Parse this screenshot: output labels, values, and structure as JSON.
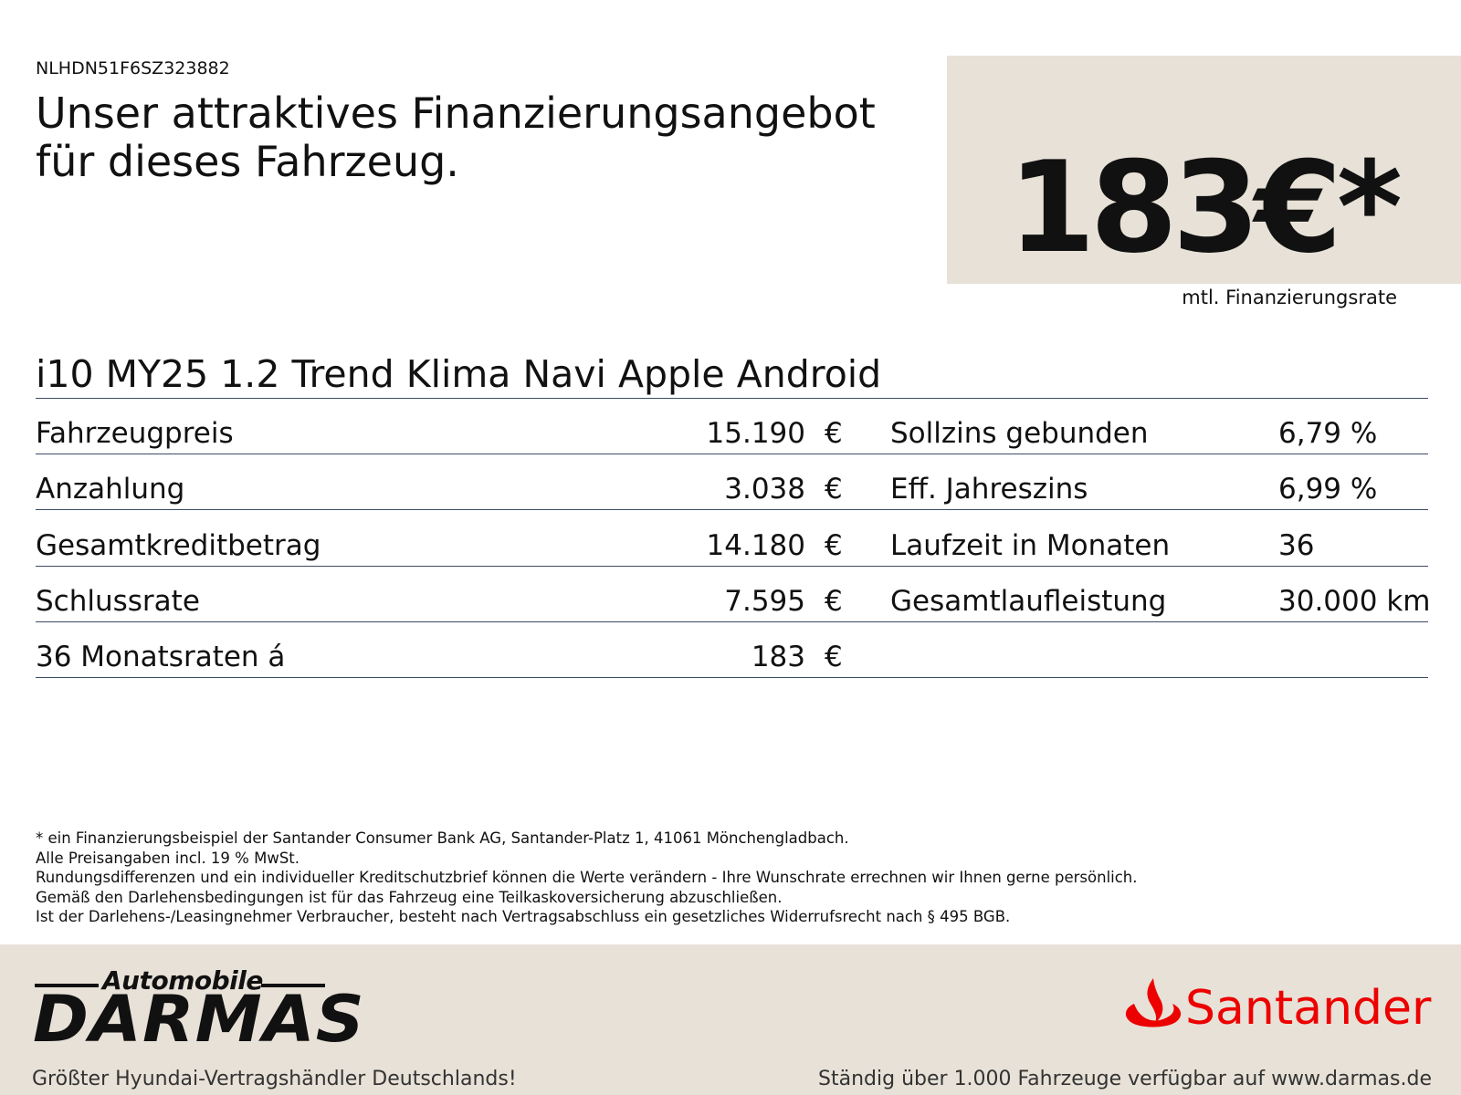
{
  "vin": "NLHDN51F6SZ323882",
  "headline": [
    "Unser attraktives Finanzierungsangebot",
    "für dieses Fahrzeug."
  ],
  "price": "183€*",
  "price_label": "mtl. Finanzierungsrate",
  "model": "i10 MY25 1.2 Trend Klima Navi Apple Android",
  "left_table": [
    {
      "label": "Fahrzeugpreis",
      "value": "15.190",
      "unit": "€"
    },
    {
      "label": "Anzahlung",
      "value": "3.038",
      "unit": "€"
    },
    {
      "label": "Gesamtkreditbetrag",
      "value": "14.180",
      "unit": "€"
    },
    {
      "label": "Schlussrate",
      "value": "7.595",
      "unit": "€"
    },
    {
      "label": "36 Monatsraten á",
      "value": "183",
      "unit": "€"
    }
  ],
  "right_table": [
    {
      "label": "Sollzins gebunden",
      "value": "6,79 %"
    },
    {
      "label": "Eff. Jahreszins",
      "value": "6,99 %"
    },
    {
      "label": "Laufzeit in Monaten",
      "value": "36"
    },
    {
      "label": "Gesamtlaufleistung",
      "value": "30.000 km"
    }
  ],
  "footnotes": [
    "* ein Finanzierungsbeispiel der Santander Consumer Bank AG, Santander-Platz 1, 41061 Mönchengladbach.",
    "Alle Preisangaben incl. 19 % MwSt.",
    "Rundungsdifferenzen und ein individueller Kreditschutzbrief können die Werte verändern - Ihre Wunschrate errechnen wir Ihnen gerne persönlich.",
    "Gemäß den Darlehensbedingungen ist für das Fahrzeug eine Teilkaskoversicherung abzuschließen.",
    "Ist der Darlehens-/Leasingnehmer Verbraucher, besteht nach Vertragsabschluss ein gesetzliches Widerrufsrecht nach § 495 BGB."
  ],
  "footer": {
    "dealer_top": "Automobile",
    "dealer_name": "DARMAS",
    "tagline": "Größter Hyundai-Vertragshändler Deutschlands!",
    "bank": "Santander",
    "right_text": "Ständig über 1.000 Fahrzeuge verfügbar auf www.darmas.de"
  }
}
